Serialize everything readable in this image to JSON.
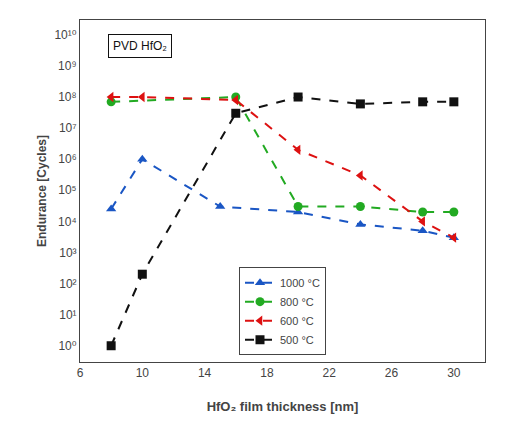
{
  "chart_data": {
    "type": "line",
    "title": "PVD HfO₂",
    "xlabel": "HfO₂ film thickness [nm]",
    "ylabel": "Endurance [Cycles]",
    "log": "y",
    "grid": false,
    "legend": "lower center",
    "xlim": [
      6,
      32
    ],
    "xticks": [
      6,
      10,
      14,
      18,
      22,
      26,
      30
    ],
    "ylim": [
      0.3,
      30000000000.0
    ],
    "yticks": [
      {
        "value": 1,
        "label": "10⁰"
      },
      {
        "value": 10,
        "label": "10¹"
      },
      {
        "value": 100,
        "label": "10²"
      },
      {
        "value": 1000,
        "label": "10³"
      },
      {
        "value": 10000,
        "label": "10⁴"
      },
      {
        "value": 100000,
        "label": "10⁵"
      },
      {
        "value": 1000000,
        "label": "10⁶"
      },
      {
        "value": 10000000,
        "label": "10⁷"
      },
      {
        "value": 100000000,
        "label": "10⁸"
      },
      {
        "value": 1000000000,
        "label": "10⁹"
      },
      {
        "value": 10000000000,
        "label": "10¹⁰"
      }
    ],
    "series": [
      {
        "name": "1000 °C",
        "color": "#1a56c4",
        "marker": "triangle-up",
        "line_style": "dashed",
        "x": [
          8,
          10,
          15,
          20,
          24,
          28,
          30
        ],
        "values": [
          25000.0,
          1000000.0,
          30000.0,
          20000.0,
          8000.0,
          5000.0,
          3000.0
        ]
      },
      {
        "name": "800 °C",
        "color": "#22aa22",
        "marker": "circle",
        "line_style": "dashed",
        "x": [
          8,
          16,
          20,
          24,
          28,
          30
        ],
        "values": [
          70000000.0,
          100000000.0,
          30000.0,
          30000.0,
          20000.0,
          20000.0
        ]
      },
      {
        "name": "600 °C",
        "color": "#dd1111",
        "marker": "triangle-left",
        "line_style": "dashed",
        "x": [
          8,
          10,
          16,
          20,
          24,
          28,
          30
        ],
        "values": [
          100000000.0,
          100000000.0,
          80000000.0,
          2000000.0,
          300000.0,
          10000.0,
          3000.0
        ]
      },
      {
        "name": "500 °C",
        "color": "#111111",
        "marker": "square",
        "line_style": "dashed",
        "x": [
          8,
          10,
          16,
          20,
          24,
          28,
          30
        ],
        "values": [
          1,
          200.0,
          30000000.0,
          100000000.0,
          60000000.0,
          70000000.0,
          70000000.0
        ]
      }
    ]
  }
}
